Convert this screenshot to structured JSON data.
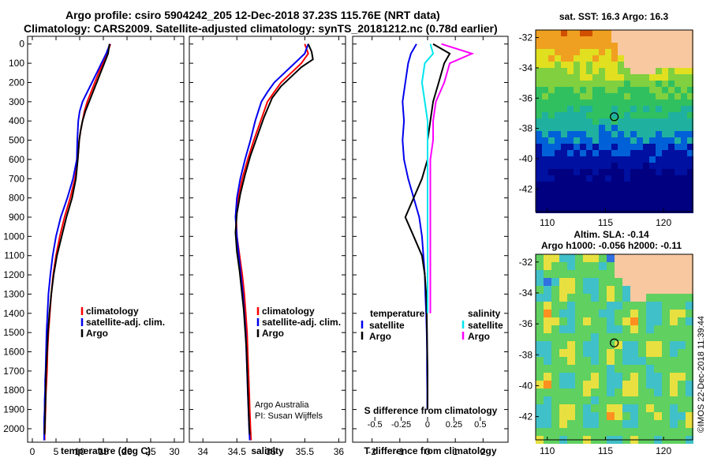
{
  "header": {
    "line1": "Argo profile: csiro 5904242_205 12-Dec-2018 37.23S 115.76E (NRT data)",
    "line2": "Climatology: CARS2009. Satellite-adjusted climatology: synTS_20181212.nc (0.78d earlier)"
  },
  "credit": "©IMOS 22-Dec-2018 11:39:44",
  "colors": {
    "climatology": "#ff0000",
    "satellite": "#0000ee",
    "argo": "#000000",
    "sal_satellite": "#00e5ee",
    "sal_argo": "#ff00ff",
    "land": "#f8c8a0"
  },
  "chart_data": [
    {
      "type": "line",
      "xlabel": "temperature (deg C)",
      "ylabel": "",
      "xlim": [
        -1,
        32
      ],
      "ylim": [
        2070,
        -40
      ],
      "xticks": [
        0,
        5,
        10,
        15,
        20,
        25,
        30
      ],
      "yticks": [
        0,
        100,
        200,
        300,
        400,
        500,
        600,
        700,
        800,
        900,
        1000,
        1100,
        1200,
        1300,
        1400,
        1500,
        1600,
        1700,
        1800,
        1900,
        2000
      ],
      "legend": [
        "climatology",
        "satellite-adj. clim.",
        "Argo"
      ],
      "legend_position": "lower-center",
      "series": [
        {
          "name": "climatology",
          "color": "#ff0000",
          "x": [
            16.5,
            15.8,
            14.9,
            14.0,
            13.2,
            12.4,
            11.6,
            11.0,
            10.6,
            10.2,
            9.9,
            9.6,
            9.0,
            8.0,
            6.8,
            5.8,
            5.0,
            4.4,
            4.0,
            3.7,
            3.4,
            3.2,
            3.1,
            3.0,
            2.9,
            2.8,
            2.8,
            2.7,
            2.7,
            2.6,
            2.6
          ],
          "y": [
            0,
            50,
            100,
            150,
            200,
            250,
            300,
            350,
            400,
            450,
            500,
            600,
            700,
            800,
            900,
            1000,
            1100,
            1200,
            1300,
            1400,
            1500,
            1600,
            1700,
            1750,
            1800,
            1850,
            1900,
            1950,
            2000,
            2030,
            2060
          ]
        },
        {
          "name": "satellite-adj. clim.",
          "color": "#0000ee",
          "x": [
            16.4,
            15.6,
            14.6,
            13.6,
            12.6,
            11.6,
            10.6,
            10.0,
            9.7,
            9.6,
            9.5,
            9.4,
            8.6,
            7.4,
            6.0,
            5.0,
            4.3,
            3.8,
            3.4,
            3.2,
            3.0,
            2.9,
            2.8,
            2.7,
            2.7,
            2.6,
            2.6,
            2.5,
            2.5,
            2.5,
            2.5
          ],
          "y": [
            0,
            50,
            100,
            150,
            200,
            250,
            300,
            350,
            400,
            450,
            500,
            600,
            700,
            800,
            900,
            1000,
            1100,
            1200,
            1300,
            1400,
            1500,
            1600,
            1700,
            1750,
            1800,
            1850,
            1900,
            1950,
            2000,
            2030,
            2060
          ]
        },
        {
          "name": "Argo",
          "color": "#000000",
          "x": [
            16.3,
            16.0,
            15.2,
            14.4,
            13.6,
            12.8,
            12.0,
            11.2,
            10.6,
            10.2,
            9.9,
            9.6,
            9.2,
            8.4,
            7.2,
            6.2,
            5.2,
            4.5,
            4.0,
            3.6,
            3.3,
            3.1,
            2.9,
            2.8,
            2.8,
            2.7,
            2.7,
            2.6,
            2.6
          ],
          "y": [
            0,
            50,
            100,
            150,
            200,
            250,
            300,
            350,
            400,
            450,
            500,
            600,
            700,
            800,
            900,
            1000,
            1100,
            1200,
            1300,
            1400,
            1500,
            1600,
            1700,
            1800,
            1850,
            1900,
            1950,
            2000,
            2030
          ]
        }
      ]
    },
    {
      "type": "line",
      "xlabel": "salinity",
      "ylabel": "",
      "xlim": [
        33.8,
        36.1
      ],
      "ylim": [
        2070,
        -40
      ],
      "xticks": [
        34,
        34.5,
        35,
        35.5,
        36
      ],
      "legend": [
        "climatology",
        "satellite-adj. clim.",
        "Argo"
      ],
      "legend_position": "lower-center",
      "annotations": [
        "Argo Australia",
        "PI: Susan Wijffels"
      ],
      "series": [
        {
          "name": "climatology",
          "color": "#ff0000",
          "x": [
            35.5,
            35.55,
            35.45,
            35.3,
            35.15,
            35.05,
            34.95,
            34.85,
            34.75,
            34.66,
            34.58,
            34.52,
            34.49,
            34.5,
            34.54,
            34.58,
            34.61,
            34.63,
            34.65,
            34.66,
            34.67,
            34.68,
            34.69,
            34.7,
            34.71
          ],
          "y": [
            0,
            50,
            100,
            150,
            200,
            250,
            300,
            400,
            500,
            600,
            700,
            800,
            900,
            1000,
            1100,
            1200,
            1300,
            1400,
            1500,
            1600,
            1700,
            1800,
            1900,
            2000,
            2060
          ]
        },
        {
          "name": "satellite-adj. clim.",
          "color": "#0000ee",
          "x": [
            35.55,
            35.5,
            35.35,
            35.2,
            35.05,
            34.95,
            34.86,
            34.77,
            34.7,
            34.62,
            34.55,
            34.5,
            34.48,
            34.5,
            34.53,
            34.56,
            34.59,
            34.61,
            34.63,
            34.64,
            34.65,
            34.66,
            34.67,
            34.68,
            34.69
          ],
          "y": [
            0,
            50,
            100,
            150,
            200,
            250,
            300,
            400,
            500,
            600,
            700,
            800,
            900,
            1000,
            1100,
            1200,
            1300,
            1400,
            1500,
            1600,
            1700,
            1800,
            1900,
            2000,
            2060
          ]
        },
        {
          "name": "Argo",
          "color": "#000000",
          "x": [
            35.55,
            35.6,
            35.62,
            35.45,
            35.3,
            35.15,
            35.02,
            34.9,
            34.8,
            34.7,
            34.62,
            34.55,
            34.5,
            34.48,
            34.5,
            34.54,
            34.57,
            34.6,
            34.62,
            34.64,
            34.65,
            34.66,
            34.67,
            34.68,
            34.69
          ],
          "y": [
            0,
            40,
            80,
            120,
            170,
            220,
            280,
            380,
            480,
            580,
            680,
            780,
            880,
            980,
            1080,
            1180,
            1280,
            1380,
            1480,
            1580,
            1680,
            1780,
            1880,
            1980,
            2030
          ]
        }
      ]
    },
    {
      "type": "line",
      "xlabel": "T difference from climatology",
      "xlabel2": "S difference from climatology",
      "ylabel": "",
      "xlim": [
        -2.7,
        2.9
      ],
      "ylim": [
        2070,
        -40
      ],
      "xticks": [
        -2,
        -1,
        0,
        1,
        2
      ],
      "xticks2_labels": [
        "-0.5",
        "-0.25",
        "0",
        "0.25",
        "0.5"
      ],
      "xticks2_values": [
        -1.9,
        -0.95,
        0,
        0.95,
        1.9
      ],
      "legend_temperature": [
        "temperature",
        "satellite",
        "Argo"
      ],
      "legend_salinity": [
        "salinity",
        "satellite",
        "Argo"
      ],
      "series": [
        {
          "name": "satellite",
          "color": "#0000ee",
          "x": [
            -0.4,
            -0.6,
            -0.7,
            -0.8,
            -0.9,
            -0.85,
            -0.9,
            -0.85,
            -0.7,
            -0.5,
            -0.3,
            -0.2,
            -0.15,
            -0.1,
            -0.08,
            -0.05,
            -0.03,
            -0.02,
            -0.02,
            -0.01,
            -0.01
          ],
          "y": [
            0,
            50,
            100,
            200,
            300,
            400,
            500,
            600,
            700,
            800,
            900,
            1000,
            1100,
            1200,
            1300,
            1400,
            1500,
            1600,
            1700,
            1800,
            1900
          ]
        },
        {
          "name": "Argo",
          "color": "#000000",
          "x": [
            0.2,
            0.8,
            0.6,
            0.4,
            0.2,
            0.1,
            0.0,
            0.0,
            -0.2,
            -0.5,
            -0.8,
            -0.5,
            -0.2,
            -0.1,
            -0.05,
            -0.03,
            -0.02,
            -0.01,
            0.0,
            0.0,
            0.0
          ],
          "y": [
            0,
            50,
            100,
            200,
            300,
            400,
            500,
            600,
            700,
            800,
            900,
            1000,
            1100,
            1200,
            1300,
            1400,
            1500,
            1600,
            1700,
            1800,
            1900
          ]
        },
        {
          "name": "satellite",
          "color": "#00e5ee",
          "x": [
            0.1,
            0.2,
            -0.1,
            -0.2,
            -0.1,
            0.0,
            0.0,
            0.0,
            0.0,
            0.0,
            0.0,
            0.0,
            0.0,
            0.0,
            0.0,
            0.0
          ],
          "y": [
            0,
            50,
            100,
            200,
            300,
            400,
            500,
            600,
            700,
            800,
            900,
            1000,
            1100,
            1200,
            1300,
            1400
          ]
        },
        {
          "name": "Argo",
          "color": "#ff00ff",
          "x": [
            0.5,
            1.6,
            0.8,
            0.6,
            0.3,
            0.2,
            0.2,
            0.1,
            0.1,
            0.1,
            0.1,
            0.1,
            0.1,
            0.1,
            0.1,
            0.1
          ],
          "y": [
            0,
            50,
            100,
            200,
            300,
            400,
            500,
            600,
            700,
            800,
            900,
            1000,
            1100,
            1200,
            1300,
            1400
          ]
        }
      ]
    },
    {
      "type": "heatmap",
      "title": "sat. SST: 16.3 Argo: 16.3",
      "xlim": [
        109,
        122.5
      ],
      "ylim": [
        -43.5,
        -31.5
      ],
      "xticks": [
        110,
        115,
        120
      ],
      "yticks": [
        -32,
        -34,
        -36,
        -38,
        -40,
        -42
      ],
      "marker": {
        "lon": 115.76,
        "lat": -37.23
      }
    },
    {
      "type": "heatmap",
      "title": "Altim. SLA: -0.14",
      "subtitle": "Argo h1000: -0.056 h2000: -0.11",
      "xlim": [
        109,
        122.5
      ],
      "ylim": [
        -43.5,
        -31.5
      ],
      "xticks": [
        110,
        115,
        120
      ],
      "yticks": [
        -32,
        -34,
        -36,
        -38,
        -40,
        -42
      ],
      "marker": {
        "lon": 115.76,
        "lat": -37.23
      }
    }
  ]
}
